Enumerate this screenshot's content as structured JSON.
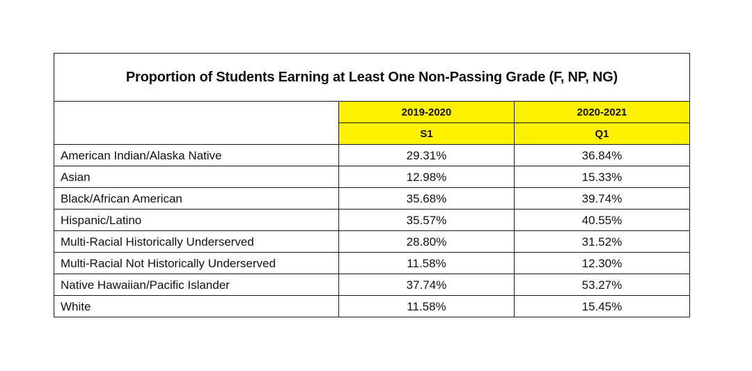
{
  "chart_data": {
    "type": "table",
    "title": "Proportion of Students Earning at Least One Non-Passing Grade (F, NP, NG)",
    "columns": [
      {
        "year": "2019-2020",
        "term": "S1"
      },
      {
        "year": "2020-2021",
        "term": "Q1"
      }
    ],
    "rows": [
      {
        "label": "American Indian/Alaska Native",
        "values": [
          "29.31%",
          "36.84%"
        ]
      },
      {
        "label": "Asian",
        "values": [
          "12.98%",
          "15.33%"
        ]
      },
      {
        "label": "Black/African American",
        "values": [
          "35.68%",
          "39.74%"
        ]
      },
      {
        "label": "Hispanic/Latino",
        "values": [
          "35.57%",
          "40.55%"
        ]
      },
      {
        "label": "Multi-Racial Historically Underserved",
        "values": [
          "28.80%",
          "31.52%"
        ]
      },
      {
        "label": "Multi-Racial Not Historically Underserved",
        "values": [
          "11.58%",
          "12.30%"
        ]
      },
      {
        "label": "Native Hawaiian/Pacific Islander",
        "values": [
          "37.74%",
          "53.27%"
        ]
      },
      {
        "label": "White",
        "values": [
          "11.58%",
          "15.45%"
        ]
      }
    ],
    "header_color": "#fff200"
  }
}
